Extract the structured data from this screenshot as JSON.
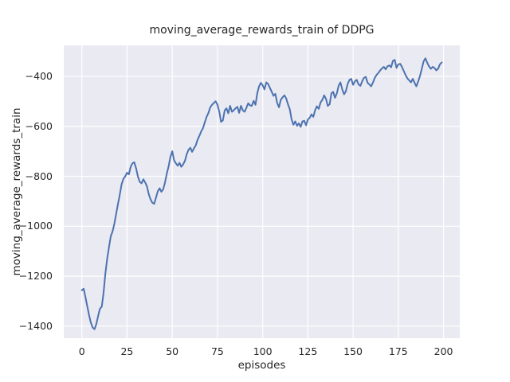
{
  "chart_data": {
    "type": "line",
    "title": "moving_average_rewards_train of DDPG",
    "xlabel": "episodes",
    "ylabel": "moving_average_rewards_train",
    "legend": "none",
    "grid": true,
    "plot_bg_color": "#eaeaf2",
    "grid_color": "#ffffff",
    "text_color": "#262626",
    "xlim": [
      -10,
      209
    ],
    "ylim": [
      -1448,
      -276
    ],
    "xticks": [
      0,
      25,
      50,
      75,
      100,
      125,
      150,
      175,
      200
    ],
    "yticks": [
      -400,
      -600,
      -800,
      -1000,
      -1200,
      -1400
    ],
    "series": [
      {
        "name": "moving_average_rewards_train",
        "color": "#4c72b0",
        "x_start": 0,
        "x_step": 1,
        "values": [
          -1256,
          -1250,
          -1283,
          -1320,
          -1356,
          -1386,
          -1405,
          -1412,
          -1392,
          -1360,
          -1330,
          -1322,
          -1268,
          -1190,
          -1130,
          -1085,
          -1040,
          -1020,
          -990,
          -950,
          -910,
          -872,
          -832,
          -810,
          -800,
          -786,
          -792,
          -762,
          -748,
          -744,
          -768,
          -800,
          -822,
          -828,
          -812,
          -824,
          -840,
          -872,
          -892,
          -906,
          -910,
          -886,
          -860,
          -848,
          -862,
          -852,
          -824,
          -788,
          -760,
          -722,
          -700,
          -736,
          -748,
          -758,
          -746,
          -762,
          -752,
          -738,
          -712,
          -694,
          -686,
          -702,
          -688,
          -676,
          -654,
          -638,
          -620,
          -608,
          -584,
          -562,
          -546,
          -524,
          -514,
          -506,
          -500,
          -514,
          -542,
          -582,
          -576,
          -536,
          -528,
          -548,
          -518,
          -542,
          -536,
          -528,
          -522,
          -546,
          -518,
          -536,
          -542,
          -526,
          -508,
          -516,
          -518,
          -498,
          -514,
          -468,
          -440,
          -426,
          -436,
          -452,
          -424,
          -430,
          -446,
          -462,
          -478,
          -470,
          -506,
          -524,
          -494,
          -484,
          -476,
          -488,
          -512,
          -532,
          -572,
          -594,
          -580,
          -598,
          -588,
          -602,
          -580,
          -578,
          -596,
          -572,
          -566,
          -552,
          -562,
          -536,
          -520,
          -530,
          -504,
          -494,
          -476,
          -490,
          -518,
          -512,
          -468,
          -462,
          -486,
          -468,
          -438,
          -424,
          -452,
          -472,
          -460,
          -430,
          -414,
          -410,
          -434,
          -420,
          -414,
          -432,
          -438,
          -420,
          -406,
          -402,
          -426,
          -432,
          -440,
          -424,
          -406,
          -394,
          -386,
          -376,
          -368,
          -362,
          -372,
          -360,
          -356,
          -364,
          -338,
          -334,
          -366,
          -352,
          -350,
          -362,
          -378,
          -394,
          -408,
          -416,
          -424,
          -410,
          -426,
          -440,
          -420,
          -398,
          -370,
          -340,
          -328,
          -346,
          -360,
          -370,
          -362,
          -366,
          -376,
          -370,
          -352,
          -344
        ]
      }
    ]
  }
}
